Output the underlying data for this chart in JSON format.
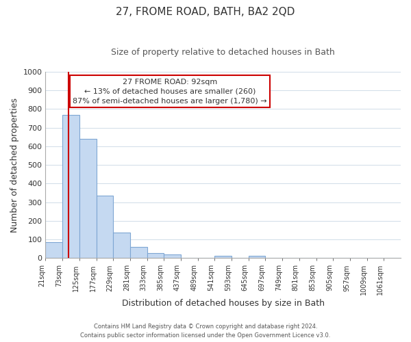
{
  "title": "27, FROME ROAD, BATH, BA2 2QD",
  "subtitle": "Size of property relative to detached houses in Bath",
  "xlabel": "Distribution of detached houses by size in Bath",
  "ylabel": "Number of detached properties",
  "bin_labels": [
    "21sqm",
    "73sqm",
    "125sqm",
    "177sqm",
    "229sqm",
    "281sqm",
    "333sqm",
    "385sqm",
    "437sqm",
    "489sqm",
    "541sqm",
    "593sqm",
    "645sqm",
    "697sqm",
    "749sqm",
    "801sqm",
    "853sqm",
    "905sqm",
    "957sqm",
    "1009sqm",
    "1061sqm"
  ],
  "bar_values": [
    85,
    770,
    640,
    335,
    135,
    60,
    25,
    18,
    0,
    0,
    10,
    0,
    12,
    0,
    0,
    0,
    0,
    0,
    0,
    0,
    0
  ],
  "bar_color": "#c5d9f1",
  "bar_edge_color": "#7ea6d3",
  "marker_line_color": "#cc0000",
  "ylim": [
    0,
    1000
  ],
  "yticks": [
    0,
    100,
    200,
    300,
    400,
    500,
    600,
    700,
    800,
    900,
    1000
  ],
  "annotation_title": "27 FROME ROAD: 92sqm",
  "annotation_line1": "← 13% of detached houses are smaller (260)",
  "annotation_line2": "87% of semi-detached houses are larger (1,780) →",
  "annotation_box_color": "#ffffff",
  "annotation_box_edge": "#cc0000",
  "footer_line1": "Contains HM Land Registry data © Crown copyright and database right 2024.",
  "footer_line2": "Contains public sector information licensed under the Open Government Licence v3.0.",
  "bg_color": "#ffffff",
  "grid_color": "#d0dce8"
}
